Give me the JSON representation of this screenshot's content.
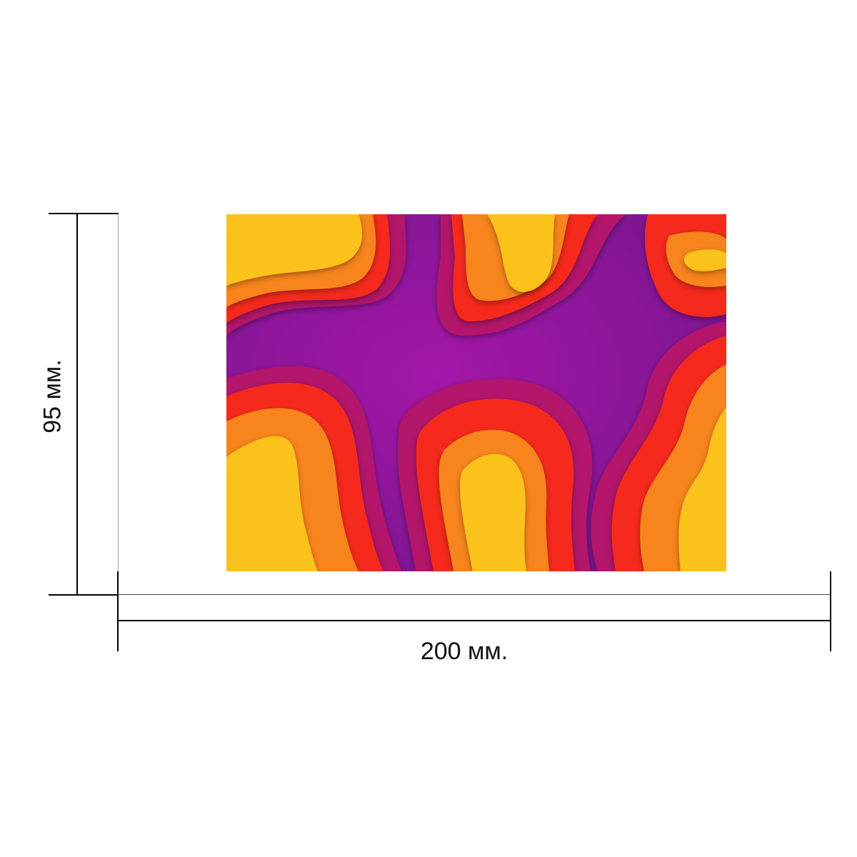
{
  "dimensions": {
    "height_label": "95 мм.",
    "width_label": "200 мм."
  },
  "artwork": {
    "description_colors": {
      "yellow": "#FCC21F",
      "orange": "#F7841D",
      "red": "#F52A1A",
      "crimson": "#CC1650",
      "magenta": "#A01283",
      "purple": "#8E1497"
    }
  }
}
